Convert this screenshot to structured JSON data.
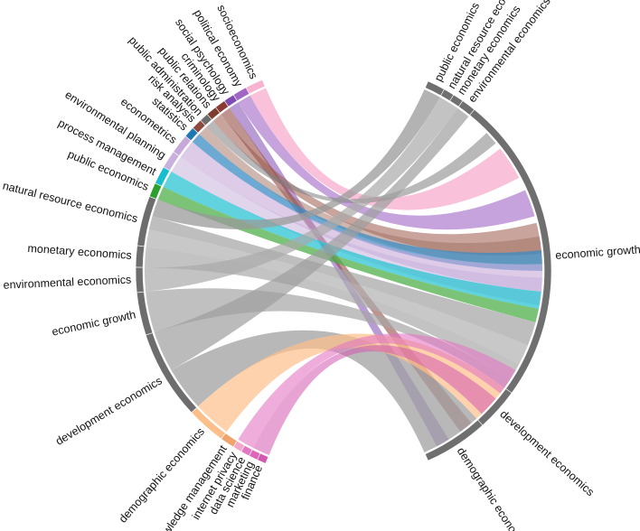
{
  "left_labels": [
    {
      "text": "socioeconomics",
      "color": "#f7b3cf"
    },
    {
      "text": "political economy",
      "color": "#a066c6"
    },
    {
      "text": "social psychology",
      "color": "#7f4bb2"
    },
    {
      "text": "criminology",
      "color": "#8a3a32"
    },
    {
      "text": "public relations",
      "color": "#7b3f32"
    },
    {
      "text": "public administration",
      "color": "#6d6d6d"
    },
    {
      "text": "risk analysis",
      "color": "#8d4a3e"
    },
    {
      "text": "statistics",
      "color": "#1f78b4"
    },
    {
      "text": "econometrics",
      "color": "#c6a9d9"
    },
    {
      "text": "environmental planning",
      "color": "#c8b2dd"
    },
    {
      "text": "process management",
      "color": "#17becf"
    },
    {
      "text": "public economics",
      "color": "#2ca02c"
    },
    {
      "text": "natural resource economics",
      "color": "#6d6d6d"
    },
    {
      "text": "monetary economics",
      "color": "#6d6d6d"
    },
    {
      "text": "environmental economics",
      "color": "#6d6d6d"
    },
    {
      "text": "economic growth",
      "color": "#6d6d6d"
    },
    {
      "text": "development economics",
      "color": "#6d6d6d"
    },
    {
      "text": "demographic economics",
      "color": "#fdbf8a"
    },
    {
      "text": "knowledge management",
      "color": "#f0a46d"
    },
    {
      "text": "internet privacy",
      "color": "#f3a8c9"
    },
    {
      "text": "data science",
      "color": "#e377c2"
    },
    {
      "text": "marketing",
      "color": "#e066b8"
    },
    {
      "text": "finance",
      "color": "#d458b0"
    }
  ],
  "right_labels": [
    "public economics",
    "natural resource economics",
    "monetary economics",
    "environmental economics",
    "economic growth",
    "development economics",
    "demographic economic"
  ]
}
